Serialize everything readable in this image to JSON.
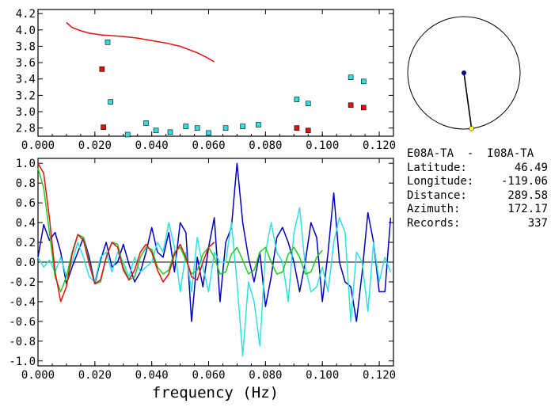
{
  "station_pair": "E08A-TA  -  I08A-TA",
  "info": [
    {
      "label": "Latitude:",
      "value": "46.49"
    },
    {
      "label": "Longitude:",
      "value": "-119.06"
    },
    {
      "label": "Distance:",
      "value": "289.58"
    },
    {
      "label": "Azimuth:",
      "value": "172.17"
    },
    {
      "label": "Records:",
      "value": "337"
    }
  ],
  "colors": {
    "dark_blue": "#0000c0",
    "cyan": "#30e0e0",
    "red": "#e01010",
    "green": "#20cc20",
    "axis": "#000000",
    "marker_dot": "#ffff30"
  },
  "azimuth_dial": {
    "azimuth_deg": 172.17
  },
  "chart_data": [
    {
      "type": "scatter",
      "xlim": [
        0.0,
        0.125
      ],
      "ylim": [
        2.7,
        4.25
      ],
      "xticks": [
        "0.000",
        "0.020",
        "0.040",
        "0.060",
        "0.080",
        "0.100",
        "0.120"
      ],
      "yticks": [
        "2.8",
        "3.0",
        "3.2",
        "3.4",
        "3.6",
        "3.8",
        "4.0",
        "4.2"
      ],
      "curve": {
        "x": [
          0.01,
          0.012,
          0.015,
          0.018,
          0.022,
          0.026,
          0.03,
          0.035,
          0.04,
          0.045,
          0.05,
          0.053,
          0.056,
          0.059,
          0.062
        ],
        "y": [
          4.09,
          4.03,
          3.99,
          3.96,
          3.94,
          3.93,
          3.92,
          3.9,
          3.87,
          3.84,
          3.8,
          3.76,
          3.72,
          3.67,
          3.61
        ]
      },
      "cyan_points": {
        "x": [
          0.0245,
          0.0255,
          0.0315,
          0.038,
          0.0415,
          0.0465,
          0.052,
          0.056,
          0.06,
          0.066,
          0.072,
          0.0775,
          0.091,
          0.095,
          0.11,
          0.1145
        ],
        "y": [
          3.85,
          3.12,
          2.72,
          2.86,
          2.77,
          2.75,
          2.82,
          2.8,
          2.74,
          2.8,
          2.82,
          2.84,
          3.15,
          3.1,
          3.42,
          3.37
        ]
      },
      "red_points": {
        "x": [
          0.0225,
          0.023,
          0.091,
          0.095,
          0.11,
          0.1145
        ],
        "y": [
          3.52,
          2.81,
          2.8,
          2.77,
          3.08,
          3.05
        ]
      }
    },
    {
      "type": "line",
      "xlabel": "frequency (Hz)",
      "xlim": [
        0.0,
        0.125
      ],
      "ylim": [
        -1.05,
        1.05
      ],
      "xticks": [
        "0.000",
        "0.020",
        "0.040",
        "0.060",
        "0.080",
        "0.100",
        "0.120"
      ],
      "yticks": [
        "-1.0",
        "-0.8",
        "-0.6",
        "-0.4",
        "-0.2",
        "0.0",
        "0.2",
        "0.4",
        "0.6",
        "0.8",
        "1.0"
      ],
      "series": [
        {
          "color": "#0000c0",
          "x": [
            0.0,
            0.002,
            0.004,
            0.006,
            0.008,
            0.01,
            0.012,
            0.014,
            0.016,
            0.018,
            0.02,
            0.022,
            0.024,
            0.026,
            0.028,
            0.03,
            0.032,
            0.034,
            0.036,
            0.038,
            0.04,
            0.042,
            0.044,
            0.046,
            0.048,
            0.05,
            0.052,
            0.054,
            0.056,
            0.058,
            0.06,
            0.062,
            0.064,
            0.066,
            0.068,
            0.07,
            0.072,
            0.074,
            0.076,
            0.078,
            0.08,
            0.082,
            0.084,
            0.086,
            0.088,
            0.09,
            0.092,
            0.094,
            0.096,
            0.098,
            0.1,
            0.102,
            0.104,
            0.106,
            0.108,
            0.11,
            0.112,
            0.114,
            0.116,
            0.118,
            0.12,
            0.122,
            0.124
          ],
          "y": [
            0.05,
            0.38,
            0.22,
            0.3,
            0.1,
            -0.22,
            -0.05,
            0.1,
            0.25,
            0.05,
            -0.22,
            0.02,
            0.2,
            -0.05,
            0.0,
            0.18,
            -0.02,
            -0.2,
            -0.1,
            0.1,
            0.35,
            0.1,
            0.05,
            0.3,
            -0.1,
            0.4,
            0.3,
            -0.6,
            0.05,
            -0.25,
            0.15,
            0.45,
            -0.4,
            0.2,
            0.35,
            1.0,
            0.4,
            0.05,
            -0.2,
            0.1,
            -0.45,
            -0.15,
            0.25,
            0.35,
            0.2,
            0.0,
            -0.3,
            0.0,
            0.4,
            0.25,
            -0.4,
            0.1,
            0.7,
            0.0,
            -0.2,
            -0.25,
            -0.6,
            -0.1,
            0.5,
            0.2,
            -0.3,
            -0.3,
            0.45
          ]
        },
        {
          "color": "#30e0e0",
          "x": [
            0.0,
            0.002,
            0.004,
            0.006,
            0.008,
            0.01,
            0.012,
            0.014,
            0.016,
            0.018,
            0.02,
            0.022,
            0.024,
            0.026,
            0.028,
            0.03,
            0.032,
            0.034,
            0.036,
            0.038,
            0.04,
            0.042,
            0.044,
            0.046,
            0.048,
            0.05,
            0.052,
            0.054,
            0.056,
            0.058,
            0.06,
            0.062,
            0.064,
            0.066,
            0.068,
            0.07,
            0.072,
            0.074,
            0.076,
            0.078,
            0.08,
            0.082,
            0.084,
            0.086,
            0.088,
            0.09,
            0.092,
            0.094,
            0.096,
            0.098,
            0.1,
            0.102,
            0.104,
            0.106,
            0.108,
            0.11,
            0.112,
            0.114,
            0.116,
            0.118,
            0.12,
            0.122,
            0.124
          ],
          "y": [
            0.05,
            -0.05,
            0.02,
            -0.1,
            0.05,
            -0.15,
            0.0,
            0.2,
            0.05,
            -0.15,
            -0.2,
            0.05,
            0.1,
            -0.1,
            0.1,
            0.0,
            -0.15,
            0.05,
            -0.1,
            -0.05,
            0.0,
            0.2,
            0.1,
            0.4,
            0.15,
            -0.3,
            0.1,
            -0.3,
            0.25,
            -0.05,
            -0.3,
            0.1,
            0.0,
            0.0,
            0.4,
            -0.2,
            -0.95,
            -0.2,
            -0.4,
            -0.85,
            0.1,
            0.4,
            0.1,
            0.0,
            -0.4,
            0.3,
            0.55,
            -0.05,
            -0.3,
            -0.25,
            -0.05,
            -0.3,
            0.2,
            0.45,
            0.3,
            -0.6,
            0.1,
            0.0,
            -0.5,
            0.2,
            -0.2,
            0.05,
            -0.1
          ]
        },
        {
          "color": "#20cc20",
          "x": [
            0.0,
            0.002,
            0.004,
            0.006,
            0.008,
            0.01,
            0.012,
            0.014,
            0.016,
            0.018,
            0.02,
            0.022,
            0.024,
            0.026,
            0.028,
            0.03,
            0.032,
            0.034,
            0.036,
            0.038,
            0.04,
            0.042,
            0.044,
            0.046,
            0.048,
            0.05,
            0.052,
            0.054,
            0.056,
            0.058,
            0.06,
            0.062,
            0.064,
            0.066,
            0.068,
            0.07,
            0.072,
            0.074,
            0.076,
            0.078,
            0.08,
            0.082,
            0.084,
            0.086,
            0.088,
            0.09,
            0.092,
            0.094,
            0.096,
            0.098,
            0.1
          ],
          "y": [
            0.95,
            0.75,
            0.3,
            -0.15,
            -0.3,
            -0.15,
            0.1,
            0.28,
            0.25,
            0.0,
            -0.22,
            -0.2,
            0.05,
            0.2,
            0.18,
            -0.05,
            -0.18,
            -0.15,
            0.05,
            0.15,
            0.13,
            -0.05,
            -0.12,
            -0.08,
            0.1,
            0.15,
            0.02,
            -0.12,
            -0.08,
            0.08,
            0.15,
            0.05,
            -0.12,
            -0.1,
            0.08,
            0.15,
            0.02,
            -0.12,
            -0.08,
            0.1,
            0.15,
            0.0,
            -0.12,
            -0.1,
            0.08,
            0.15,
            0.05,
            -0.12,
            -0.1,
            0.05,
            0.12
          ]
        },
        {
          "color": "#e01010",
          "x": [
            0.0,
            0.002,
            0.004,
            0.006,
            0.008,
            0.01,
            0.012,
            0.014,
            0.016,
            0.018,
            0.02,
            0.022,
            0.024,
            0.026,
            0.028,
            0.03,
            0.032,
            0.034,
            0.036,
            0.038,
            0.04,
            0.042,
            0.044,
            0.046,
            0.048,
            0.05,
            0.052,
            0.054,
            0.056,
            0.058,
            0.06,
            0.062
          ],
          "y": [
            1.0,
            0.9,
            0.45,
            -0.1,
            -0.4,
            -0.25,
            0.08,
            0.28,
            0.22,
            -0.02,
            -0.22,
            -0.18,
            0.05,
            0.2,
            0.15,
            -0.08,
            -0.18,
            -0.08,
            0.1,
            0.18,
            0.1,
            -0.08,
            -0.2,
            -0.12,
            0.08,
            0.18,
            0.05,
            -0.15,
            -0.18,
            0.0,
            0.15,
            0.2
          ]
        }
      ]
    }
  ]
}
